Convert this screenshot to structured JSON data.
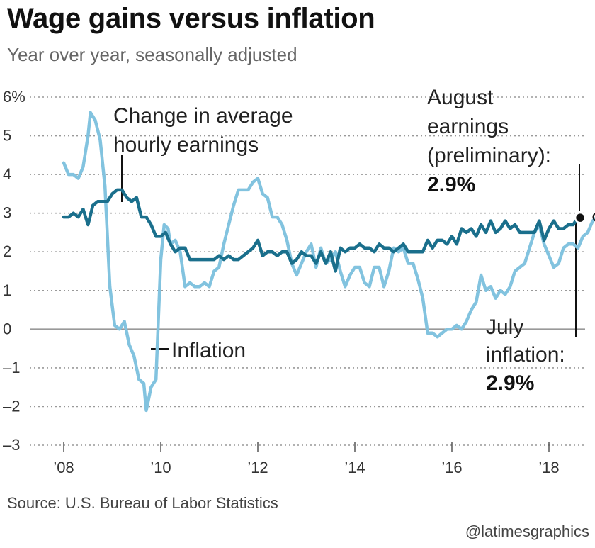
{
  "title": "Wage gains versus inflation",
  "subtitle": "Year over year, seasonally adjusted",
  "source": "Source: U.S. Bureau of Labor Statistics",
  "credit": "@latimesgraphics",
  "colors": {
    "earnings": "#1a6f8c",
    "inflation": "#82c3df",
    "grid": "#999999",
    "zero_line": "#999999"
  },
  "chart_data": {
    "type": "line",
    "title": "Wage gains versus inflation",
    "subtitle": "Year over year, seasonally adjusted",
    "x_unit": "year",
    "x_range": [
      2008,
      2018.75
    ],
    "ylim": [
      -3,
      6
    ],
    "grid": "horizontal dotted",
    "y_ticks": [
      {
        "value": 6,
        "label": "6%"
      },
      {
        "value": 5,
        "label": "5"
      },
      {
        "value": 4,
        "label": "4"
      },
      {
        "value": 3,
        "label": "3"
      },
      {
        "value": 2,
        "label": "2"
      },
      {
        "value": 1,
        "label": "1"
      },
      {
        "value": 0,
        "label": "0"
      },
      {
        "value": -1,
        "label": "-1"
      },
      {
        "value": -2,
        "label": "-2"
      },
      {
        "value": -3,
        "label": "-3"
      }
    ],
    "x_ticks": [
      {
        "value": 2008,
        "label": "’08"
      },
      {
        "value": 2010,
        "label": "’10"
      },
      {
        "value": 2012,
        "label": "’12"
      },
      {
        "value": 2014,
        "label": "’14"
      },
      {
        "value": 2016,
        "label": "’16"
      },
      {
        "value": 2018,
        "label": "’18"
      }
    ],
    "series": [
      {
        "name": "Change in average hourly earnings",
        "key": "earnings",
        "points": [
          [
            2008.0,
            2.9
          ],
          [
            2008.1,
            2.9
          ],
          [
            2008.2,
            3.0
          ],
          [
            2008.3,
            2.9
          ],
          [
            2008.4,
            3.1
          ],
          [
            2008.5,
            2.7
          ],
          [
            2008.6,
            3.2
          ],
          [
            2008.7,
            3.3
          ],
          [
            2008.8,
            3.3
          ],
          [
            2008.9,
            3.3
          ],
          [
            2009.0,
            3.5
          ],
          [
            2009.1,
            3.6
          ],
          [
            2009.2,
            3.6
          ],
          [
            2009.3,
            3.4
          ],
          [
            2009.4,
            3.3
          ],
          [
            2009.5,
            3.4
          ],
          [
            2009.6,
            2.9
          ],
          [
            2009.7,
            2.9
          ],
          [
            2009.8,
            2.7
          ],
          [
            2009.9,
            2.4
          ],
          [
            2010.0,
            2.4
          ],
          [
            2010.1,
            2.5
          ],
          [
            2010.2,
            2.2
          ],
          [
            2010.3,
            2.0
          ],
          [
            2010.4,
            2.1
          ],
          [
            2010.5,
            2.1
          ],
          [
            2010.6,
            1.8
          ],
          [
            2010.7,
            1.8
          ],
          [
            2010.8,
            1.8
          ],
          [
            2010.9,
            1.8
          ],
          [
            2011.0,
            1.8
          ],
          [
            2011.1,
            1.8
          ],
          [
            2011.2,
            1.9
          ],
          [
            2011.3,
            1.8
          ],
          [
            2011.4,
            1.9
          ],
          [
            2011.5,
            1.8
          ],
          [
            2011.6,
            1.8
          ],
          [
            2011.7,
            1.9
          ],
          [
            2011.8,
            2.0
          ],
          [
            2011.9,
            2.1
          ],
          [
            2012.0,
            2.3
          ],
          [
            2012.1,
            1.9
          ],
          [
            2012.2,
            2.0
          ],
          [
            2012.3,
            2.0
          ],
          [
            2012.4,
            1.9
          ],
          [
            2012.5,
            2.0
          ],
          [
            2012.6,
            2.0
          ],
          [
            2012.7,
            1.7
          ],
          [
            2012.8,
            1.8
          ],
          [
            2012.9,
            2.0
          ],
          [
            2013.0,
            1.9
          ],
          [
            2013.1,
            1.9
          ],
          [
            2013.2,
            1.7
          ],
          [
            2013.3,
            2.0
          ],
          [
            2013.4,
            1.7
          ],
          [
            2013.5,
            2.0
          ],
          [
            2013.6,
            1.5
          ],
          [
            2013.7,
            2.1
          ],
          [
            2013.8,
            2.0
          ],
          [
            2013.9,
            2.1
          ],
          [
            2014.0,
            2.1
          ],
          [
            2014.1,
            2.2
          ],
          [
            2014.2,
            2.1
          ],
          [
            2014.3,
            2.1
          ],
          [
            2014.4,
            2.0
          ],
          [
            2014.5,
            2.2
          ],
          [
            2014.6,
            2.1
          ],
          [
            2014.7,
            2.1
          ],
          [
            2014.8,
            2.0
          ],
          [
            2014.9,
            2.1
          ],
          [
            2015.0,
            2.2
          ],
          [
            2015.1,
            2.0
          ],
          [
            2015.2,
            2.0
          ],
          [
            2015.3,
            2.0
          ],
          [
            2015.4,
            2.0
          ],
          [
            2015.5,
            2.3
          ],
          [
            2015.6,
            2.1
          ],
          [
            2015.7,
            2.3
          ],
          [
            2015.8,
            2.3
          ],
          [
            2015.9,
            2.2
          ],
          [
            2016.0,
            2.4
          ],
          [
            2016.1,
            2.2
          ],
          [
            2016.2,
            2.6
          ],
          [
            2016.3,
            2.5
          ],
          [
            2016.4,
            2.6
          ],
          [
            2016.5,
            2.4
          ],
          [
            2016.6,
            2.7
          ],
          [
            2016.7,
            2.5
          ],
          [
            2016.8,
            2.8
          ],
          [
            2016.9,
            2.5
          ],
          [
            2017.0,
            2.6
          ],
          [
            2017.1,
            2.8
          ],
          [
            2017.2,
            2.6
          ],
          [
            2017.3,
            2.7
          ],
          [
            2017.4,
            2.5
          ],
          [
            2017.5,
            2.5
          ],
          [
            2017.6,
            2.5
          ],
          [
            2017.7,
            2.5
          ],
          [
            2017.8,
            2.8
          ],
          [
            2017.9,
            2.3
          ],
          [
            2018.0,
            2.6
          ],
          [
            2018.1,
            2.8
          ],
          [
            2018.2,
            2.6
          ],
          [
            2018.3,
            2.6
          ],
          [
            2018.4,
            2.7
          ],
          [
            2018.5,
            2.7
          ],
          [
            2018.6,
            2.9
          ]
        ]
      },
      {
        "name": "Inflation",
        "key": "inflation",
        "points": [
          [
            2008.0,
            4.3
          ],
          [
            2008.1,
            4.0
          ],
          [
            2008.2,
            4.0
          ],
          [
            2008.3,
            3.9
          ],
          [
            2008.4,
            4.2
          ],
          [
            2008.5,
            5.0
          ],
          [
            2008.55,
            5.6
          ],
          [
            2008.65,
            5.4
          ],
          [
            2008.75,
            4.9
          ],
          [
            2008.85,
            3.7
          ],
          [
            2008.95,
            1.1
          ],
          [
            2009.05,
            0.1
          ],
          [
            2009.15,
            0.0
          ],
          [
            2009.25,
            0.2
          ],
          [
            2009.35,
            -0.4
          ],
          [
            2009.45,
            -0.7
          ],
          [
            2009.55,
            -1.3
          ],
          [
            2009.65,
            -1.4
          ],
          [
            2009.7,
            -2.1
          ],
          [
            2009.8,
            -1.5
          ],
          [
            2009.9,
            -1.3
          ],
          [
            2010.0,
            1.8
          ],
          [
            2010.07,
            2.7
          ],
          [
            2010.15,
            2.6
          ],
          [
            2010.2,
            2.2
          ],
          [
            2010.3,
            2.3
          ],
          [
            2010.4,
            2.0
          ],
          [
            2010.5,
            1.1
          ],
          [
            2010.6,
            1.2
          ],
          [
            2010.7,
            1.1
          ],
          [
            2010.8,
            1.1
          ],
          [
            2010.9,
            1.2
          ],
          [
            2011.0,
            1.1
          ],
          [
            2011.1,
            1.5
          ],
          [
            2011.2,
            1.6
          ],
          [
            2011.3,
            2.2
          ],
          [
            2011.4,
            2.7
          ],
          [
            2011.5,
            3.2
          ],
          [
            2011.6,
            3.6
          ],
          [
            2011.7,
            3.6
          ],
          [
            2011.8,
            3.6
          ],
          [
            2011.9,
            3.8
          ],
          [
            2012.0,
            3.9
          ],
          [
            2012.1,
            3.5
          ],
          [
            2012.2,
            3.4
          ],
          [
            2012.3,
            2.9
          ],
          [
            2012.4,
            2.9
          ],
          [
            2012.5,
            2.7
          ],
          [
            2012.6,
            2.3
          ],
          [
            2012.7,
            1.7
          ],
          [
            2012.8,
            1.4
          ],
          [
            2012.9,
            1.7
          ],
          [
            2013.0,
            2.0
          ],
          [
            2013.1,
            2.2
          ],
          [
            2013.2,
            1.6
          ],
          [
            2013.3,
            2.1
          ],
          [
            2013.4,
            1.7
          ],
          [
            2013.5,
            1.8
          ],
          [
            2013.6,
            2.0
          ],
          [
            2013.7,
            1.5
          ],
          [
            2013.8,
            1.1
          ],
          [
            2013.9,
            1.4
          ],
          [
            2014.0,
            1.6
          ],
          [
            2014.1,
            1.6
          ],
          [
            2014.2,
            1.2
          ],
          [
            2014.3,
            1.1
          ],
          [
            2014.4,
            1.6
          ],
          [
            2014.5,
            1.6
          ],
          [
            2014.6,
            1.1
          ],
          [
            2014.7,
            1.5
          ],
          [
            2014.8,
            2.1
          ],
          [
            2014.9,
            2.0
          ],
          [
            2015.0,
            2.1
          ],
          [
            2015.1,
            1.7
          ],
          [
            2015.2,
            1.7
          ],
          [
            2015.3,
            1.3
          ],
          [
            2015.4,
            0.8
          ],
          [
            2015.5,
            -0.1
          ],
          [
            2015.6,
            -0.1
          ],
          [
            2015.7,
            -0.2
          ],
          [
            2015.8,
            -0.1
          ],
          [
            2015.9,
            0.0
          ],
          [
            2016.0,
            0.0
          ],
          [
            2016.1,
            0.1
          ],
          [
            2016.2,
            0.0
          ],
          [
            2016.3,
            0.2
          ],
          [
            2016.4,
            0.5
          ],
          [
            2016.5,
            0.7
          ],
          [
            2016.6,
            1.4
          ],
          [
            2016.7,
            1.0
          ],
          [
            2016.8,
            1.1
          ],
          [
            2016.9,
            0.8
          ],
          [
            2017.0,
            1.0
          ],
          [
            2017.1,
            0.9
          ],
          [
            2017.2,
            1.1
          ],
          [
            2017.3,
            1.5
          ],
          [
            2017.4,
            1.6
          ],
          [
            2017.5,
            1.7
          ],
          [
            2017.6,
            2.1
          ],
          [
            2017.7,
            2.5
          ],
          [
            2017.8,
            2.7
          ],
          [
            2017.9,
            2.2
          ],
          [
            2018.0,
            1.9
          ],
          [
            2018.1,
            1.6
          ],
          [
            2018.2,
            1.7
          ],
          [
            2018.3,
            2.1
          ],
          [
            2018.4,
            2.2
          ],
          [
            2018.5,
            2.2
          ],
          [
            2018.6,
            2.1
          ],
          [
            2018.7,
            2.4
          ],
          [
            2018.8,
            2.5
          ],
          [
            2018.9,
            2.8
          ],
          [
            2019.0,
            2.9
          ]
        ]
      }
    ],
    "annotations": {
      "earnings_label": [
        "Change in average",
        "hourly earnings"
      ],
      "inflation_label": "Inflation",
      "august_label": [
        "August",
        "earnings",
        "(preliminary):"
      ],
      "august_value": "2.9%",
      "july_label": [
        "July",
        "inflation:"
      ],
      "july_value": "2.9%"
    }
  }
}
